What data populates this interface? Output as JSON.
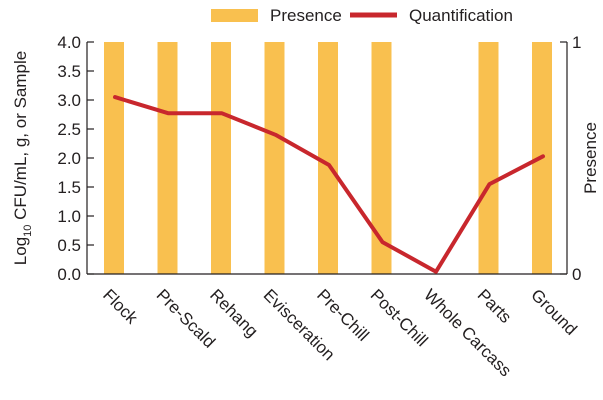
{
  "chart_data": {
    "type": "bar",
    "categories": [
      "Flock",
      "Pre-Scald",
      "Rehang",
      "Evisceration",
      "Pre-Chill",
      "Post-Chill",
      "Whole Carcass",
      "Parts",
      "Ground"
    ],
    "series": [
      {
        "name": "Presence",
        "type": "bar",
        "axis": "right",
        "color": "#f9c04f",
        "values": [
          1,
          1,
          1,
          1,
          1,
          1,
          0,
          1,
          1
        ]
      },
      {
        "name": "Quantification",
        "type": "line",
        "axis": "left",
        "color": "#c8272d",
        "values": [
          3.05,
          2.77,
          2.77,
          2.4,
          1.88,
          0.55,
          0.04,
          1.55,
          2.03
        ]
      }
    ],
    "ylabel": "Log10 CFU/mL, g, or Sample",
    "ylabel_main": "Log",
    "ylabel_sub": "10",
    "ylabel_rest": " CFU/mL, g, or Sample",
    "ylim": [
      0,
      4
    ],
    "yticks": [
      "0.0",
      "0.5",
      "1.0",
      "1.5",
      "2.0",
      "2.5",
      "3.0",
      "3.5",
      "4.0"
    ],
    "y2label": "Presence",
    "y2lim": [
      0,
      1
    ],
    "y2ticks": [
      "0",
      "1"
    ],
    "legend_position": "top",
    "grid": false
  }
}
